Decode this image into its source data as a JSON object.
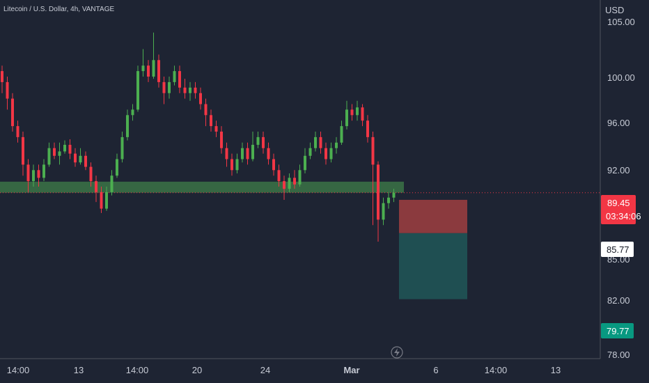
{
  "header": {
    "symbol_title": "Litecoin / U.S. Dollar, 4h, VANTAGE"
  },
  "price_axis": {
    "currency": "USD",
    "ticks": [
      "105.00",
      "100.00",
      "96.00",
      "92.00",
      "85.00",
      "82.00",
      "78.00"
    ]
  },
  "time_axis": {
    "ticks": [
      "14:00",
      "13",
      "14:00",
      "20",
      "24",
      "Mar",
      "6",
      "14:00",
      "13"
    ]
  },
  "badges": {
    "current_price": "89.45",
    "countdown": "03:34:06",
    "entry_price": "85.77",
    "target_price": "79.77"
  },
  "icons": {
    "replay": "lightning-icon"
  },
  "colors": {
    "background": "#1e2433",
    "up": "#4caf50",
    "down": "#f23645",
    "zone": "#3f7d4a",
    "risk": "#8b3a3e",
    "reward": "#1f4f52",
    "badge_current": "#f23645",
    "badge_target": "#089981"
  },
  "chart_data": {
    "type": "candlestick",
    "title": "Litecoin / U.S. Dollar, 4h, VANTAGE",
    "ylabel": "USD",
    "ylim": [
      77.7,
      106.9
    ],
    "support_zone": [
      89.45,
      90.45
    ],
    "short_position": {
      "stop": 88.8,
      "entry": 85.77,
      "target": 79.77
    },
    "last_price": 89.45,
    "candles": [
      [
        100.5,
        99.5,
        101.0,
        98.5
      ],
      [
        99.5,
        98.0,
        100.0,
        97.0
      ],
      [
        98.0,
        95.5,
        98.5,
        95.0
      ],
      [
        95.5,
        94.5,
        96.0,
        94.0
      ],
      [
        94.5,
        92.0,
        95.0,
        91.0
      ],
      [
        92.0,
        90.5,
        92.5,
        89.5
      ],
      [
        90.5,
        91.5,
        92.0,
        90.0
      ],
      [
        91.5,
        90.8,
        92.0,
        90.0
      ],
      [
        90.8,
        92.0,
        92.5,
        90.5
      ],
      [
        92.0,
        93.5,
        94.0,
        91.8
      ],
      [
        93.5,
        92.8,
        94.0,
        92.5
      ],
      [
        92.8,
        93.2,
        94.0,
        92.0
      ],
      [
        93.2,
        93.8,
        94.2,
        93.0
      ],
      [
        93.8,
        93.0,
        94.3,
        92.5
      ],
      [
        93.0,
        92.2,
        93.5,
        91.8
      ],
      [
        92.2,
        92.8,
        93.5,
        92.0
      ],
      [
        92.8,
        91.8,
        93.2,
        91.5
      ],
      [
        91.8,
        90.5,
        92.2,
        90.0
      ],
      [
        90.5,
        89.5,
        91.0,
        88.6
      ],
      [
        89.5,
        88.0,
        90.0,
        87.6
      ],
      [
        88.0,
        89.5,
        90.0,
        87.8
      ],
      [
        89.5,
        91.0,
        91.5,
        89.2
      ],
      [
        91.0,
        92.5,
        93.0,
        90.8
      ],
      [
        92.5,
        94.5,
        95.0,
        92.2
      ],
      [
        94.5,
        96.5,
        97.0,
        94.2
      ],
      [
        96.5,
        97.0,
        97.5,
        96.0
      ],
      [
        97.0,
        100.5,
        101.0,
        96.8
      ],
      [
        100.5,
        101.0,
        102.5,
        100.0
      ],
      [
        101.0,
        100.0,
        101.5,
        99.5
      ],
      [
        100.0,
        101.5,
        104.0,
        99.8
      ],
      [
        101.5,
        99.5,
        102.0,
        99.0
      ],
      [
        99.5,
        98.5,
        100.0,
        97.5
      ],
      [
        98.5,
        99.5,
        100.0,
        98.0
      ],
      [
        99.5,
        100.5,
        101.0,
        99.2
      ],
      [
        100.5,
        99.0,
        101.0,
        98.5
      ],
      [
        99.0,
        98.5,
        99.8,
        98.0
      ],
      [
        98.5,
        99.0,
        99.5,
        97.8
      ],
      [
        99.0,
        98.5,
        99.5,
        98.0
      ],
      [
        98.5,
        97.5,
        99.0,
        97.0
      ],
      [
        97.5,
        96.5,
        98.0,
        95.5
      ],
      [
        96.5,
        95.5,
        97.0,
        95.0
      ],
      [
        95.5,
        95.0,
        96.0,
        94.5
      ],
      [
        95.0,
        93.5,
        95.5,
        93.0
      ],
      [
        93.5,
        92.5,
        94.0,
        91.8
      ],
      [
        92.5,
        91.5,
        93.0,
        91.0
      ],
      [
        91.5,
        92.5,
        93.0,
        91.2
      ],
      [
        92.5,
        93.5,
        94.0,
        92.2
      ],
      [
        93.5,
        92.5,
        94.0,
        92.0
      ],
      [
        92.5,
        93.8,
        95.0,
        92.3
      ],
      [
        93.8,
        94.5,
        95.0,
        93.5
      ],
      [
        94.5,
        93.5,
        95.0,
        93.0
      ],
      [
        93.5,
        92.5,
        94.0,
        92.0
      ],
      [
        92.5,
        91.5,
        93.0,
        91.0
      ],
      [
        91.5,
        90.5,
        92.0,
        90.0
      ],
      [
        90.5,
        89.8,
        91.0,
        88.8
      ],
      [
        89.8,
        90.8,
        91.2,
        89.5
      ],
      [
        90.8,
        90.2,
        91.5,
        89.8
      ],
      [
        90.2,
        91.5,
        92.0,
        90.0
      ],
      [
        91.5,
        92.8,
        93.5,
        91.2
      ],
      [
        92.8,
        93.5,
        94.0,
        92.5
      ],
      [
        93.5,
        94.5,
        95.0,
        93.2
      ],
      [
        94.5,
        93.5,
        95.0,
        93.0
      ],
      [
        93.5,
        92.5,
        94.0,
        92.0
      ],
      [
        92.5,
        93.5,
        94.0,
        92.2
      ],
      [
        93.5,
        94.0,
        94.5,
        93.0
      ],
      [
        94.0,
        95.5,
        96.0,
        93.8
      ],
      [
        95.5,
        97.0,
        97.8,
        95.2
      ],
      [
        97.0,
        96.5,
        97.5,
        96.0
      ],
      [
        96.5,
        97.2,
        97.8,
        96.0
      ],
      [
        97.2,
        96.0,
        97.5,
        95.5
      ],
      [
        96.0,
        94.5,
        96.5,
        94.0
      ],
      [
        94.5,
        92.0,
        95.0,
        86.5
      ],
      [
        92.0,
        87.0,
        92.3,
        85.0
      ],
      [
        87.0,
        88.5,
        89.0,
        86.5
      ],
      [
        88.5,
        89.0,
        89.5,
        88.0
      ],
      [
        89.0,
        89.45,
        89.8,
        88.6
      ]
    ]
  }
}
